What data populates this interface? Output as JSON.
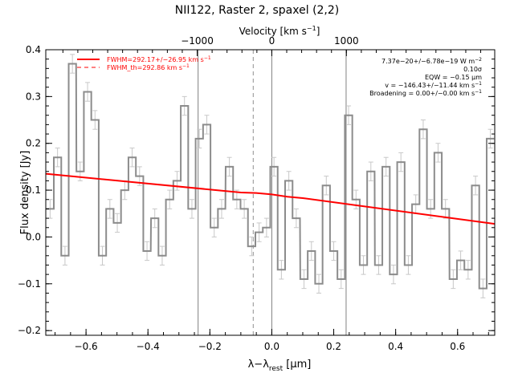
{
  "chart_data": {
    "type": "line",
    "title": "NII122, Raster 2, spaxel (2,2)",
    "xlabel": "λ−λ",
    "xlabel_sub": "rest",
    "xlabel_unit": " [μm]",
    "ylabel": "Flux density [Jy]",
    "top_xlabel": "Velocity [km s",
    "top_xlabel_sup": "−1",
    "top_xlabel_end": "]",
    "xlim": [
      -0.73,
      0.72
    ],
    "ylim": [
      -0.21,
      0.4
    ],
    "x_ticks": [
      -0.6,
      -0.4,
      -0.2,
      0.0,
      0.2,
      0.4,
      0.6
    ],
    "x_tick_labels": [
      "−0.6",
      "−0.4",
      "−0.2",
      "0.0",
      "0.2",
      "0.4",
      "0.6"
    ],
    "y_ticks": [
      -0.2,
      -0.1,
      0.0,
      0.1,
      0.2,
      0.3,
      0.4
    ],
    "y_tick_labels": [
      "−0.2",
      "−0.1",
      "0.0",
      "0.1",
      "0.2",
      "0.3",
      "0.4"
    ],
    "velocity_ticks": [
      -1000,
      0,
      1000
    ],
    "velocity_tick_labels": [
      "−1000",
      "0",
      "1000"
    ],
    "velocity_per_x": 4150,
    "grid": false,
    "series": [
      {
        "name": "spectrum",
        "style": "steps",
        "color": "#8c8c8c",
        "x": [
          -0.716,
          -0.692,
          -0.668,
          -0.644,
          -0.619,
          -0.595,
          -0.571,
          -0.547,
          -0.523,
          -0.499,
          -0.475,
          -0.451,
          -0.427,
          -0.403,
          -0.378,
          -0.354,
          -0.33,
          -0.306,
          -0.282,
          -0.258,
          -0.234,
          -0.21,
          -0.186,
          -0.162,
          -0.137,
          -0.113,
          -0.089,
          -0.065,
          -0.041,
          -0.017,
          0.007,
          0.031,
          0.055,
          0.079,
          0.104,
          0.128,
          0.152,
          0.176,
          0.2,
          0.224,
          0.248,
          0.272,
          0.296,
          0.32,
          0.345,
          0.369,
          0.393,
          0.417,
          0.441,
          0.465,
          0.489,
          0.513,
          0.537,
          0.561,
          0.586,
          0.61,
          0.634,
          0.658,
          0.682,
          0.706
        ],
        "y": [
          0.06,
          0.17,
          -0.04,
          0.37,
          0.14,
          0.31,
          0.25,
          -0.04,
          0.06,
          0.03,
          0.1,
          0.17,
          0.13,
          -0.03,
          0.04,
          -0.04,
          0.08,
          0.12,
          0.28,
          0.06,
          0.21,
          0.24,
          0.02,
          0.06,
          0.15,
          0.08,
          0.06,
          -0.02,
          0.01,
          0.02,
          0.15,
          -0.07,
          0.12,
          0.04,
          -0.09,
          -0.03,
          -0.1,
          0.11,
          -0.03,
          -0.09,
          0.26,
          0.08,
          -0.06,
          0.14,
          -0.06,
          0.15,
          -0.08,
          0.16,
          -0.06,
          0.07,
          0.23,
          0.06,
          0.18,
          0.06,
          -0.09,
          -0.05,
          -0.07,
          0.11,
          -0.11,
          0.21
        ],
        "err": [
          0.02,
          0.02,
          0.02,
          0.02,
          0.02,
          0.02,
          0.02,
          0.02,
          0.02,
          0.02,
          0.02,
          0.02,
          0.02,
          0.02,
          0.02,
          0.02,
          0.02,
          0.02,
          0.02,
          0.02,
          0.02,
          0.02,
          0.02,
          0.02,
          0.02,
          0.02,
          0.02,
          0.02,
          0.02,
          0.02,
          0.02,
          0.02,
          0.02,
          0.02,
          0.02,
          0.02,
          0.02,
          0.02,
          0.02,
          0.02,
          0.02,
          0.02,
          0.02,
          0.02,
          0.02,
          0.02,
          0.02,
          0.02,
          0.02,
          0.02,
          0.02,
          0.02,
          0.02,
          0.02,
          0.02,
          0.02,
          0.02,
          0.02,
          0.02,
          0.02
        ]
      },
      {
        "name": "fit",
        "style": "line",
        "color": "#ff0000",
        "x": [
          -0.73,
          -0.1,
          -0.05,
          0.0,
          0.05,
          0.1,
          0.72
        ],
        "y": [
          0.135,
          0.095,
          0.094,
          0.091,
          0.086,
          0.083,
          0.028
        ]
      }
    ],
    "vlines": [
      {
        "x": -0.238,
        "style": "solid",
        "color": "#808080"
      },
      {
        "x": -0.06,
        "style": "dashed",
        "color": "#909090"
      },
      {
        "x": 0.0,
        "style": "solid",
        "color": "#808080"
      },
      {
        "x": 0.24,
        "style": "solid",
        "color": "#808080"
      }
    ],
    "legend": {
      "placement": "top-left",
      "entries": [
        {
          "label": "FWHM=292.17+/−26.95 km s",
          "sup": "−1",
          "style": "solid",
          "color": "#ff0000"
        },
        {
          "label": "FWHM_th=292.86 km s",
          "sup": "−1",
          "style": "dashed",
          "color": "#ff0000"
        }
      ]
    },
    "annotations": {
      "placement": "top-right",
      "lines": [
        {
          "text": "7.37e−20+/−6.78e−19 W m",
          "sup": "−2"
        },
        {
          "text": "0.10σ",
          "sup": ""
        },
        {
          "text": "EQW = −0.15 μm",
          "sup": ""
        },
        {
          "text": "v = −146.43+/−11.44 km s",
          "sup": "−1"
        },
        {
          "text": "Broadening = 0.00+/−0.00 km s",
          "sup": "−1"
        }
      ]
    }
  }
}
